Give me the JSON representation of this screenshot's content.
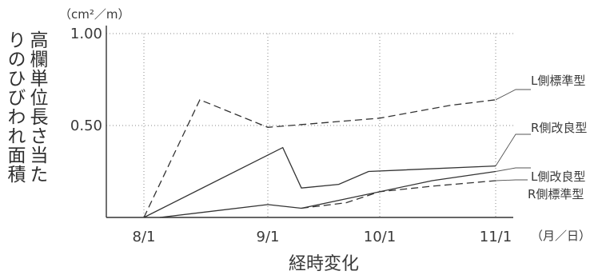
{
  "chart_data": {
    "type": "line",
    "ylabel_lines": [
      "高欄単位長さ当た",
      "りのひびわれ面積"
    ],
    "yunit": "（cm²／m）",
    "xlabel": "経時変化",
    "xunit": "（月／日）",
    "x_ticks": [
      "8/1",
      "9/1",
      "10/1",
      "11/1"
    ],
    "y_ticks": [
      "1.00",
      "0.50"
    ],
    "ylim": [
      0,
      1.0
    ],
    "grid": true,
    "series": [
      {
        "name": "L側標準型",
        "style": "dashed",
        "points": [
          [
            "8/1",
            0.0
          ],
          [
            "8/15",
            0.64
          ],
          [
            "9/1",
            0.49
          ],
          [
            "10/1",
            0.54
          ],
          [
            "10/20",
            0.61
          ],
          [
            "11/1",
            0.64
          ]
        ]
      },
      {
        "name": "R側改良型",
        "style": "solid",
        "points": [
          [
            "8/1",
            0.0
          ],
          [
            "9/5",
            0.38
          ],
          [
            "9/10",
            0.16
          ],
          [
            "9/20",
            0.18
          ],
          [
            "9/28",
            0.25
          ],
          [
            "11/1",
            0.28
          ]
        ]
      },
      {
        "name": "L側改良型",
        "style": "solid",
        "points": [
          [
            "8/5",
            0.0
          ],
          [
            "9/1",
            0.07
          ],
          [
            "9/10",
            0.05
          ],
          [
            "10/15",
            0.2
          ],
          [
            "11/1",
            0.25
          ]
        ]
      },
      {
        "name": "R側標準型",
        "style": "dashed",
        "points": [
          [
            "9/10",
            0.05
          ],
          [
            "9/22",
            0.08
          ],
          [
            "10/1",
            0.14
          ],
          [
            "10/15",
            0.17
          ],
          [
            "11/1",
            0.2
          ]
        ]
      }
    ]
  }
}
